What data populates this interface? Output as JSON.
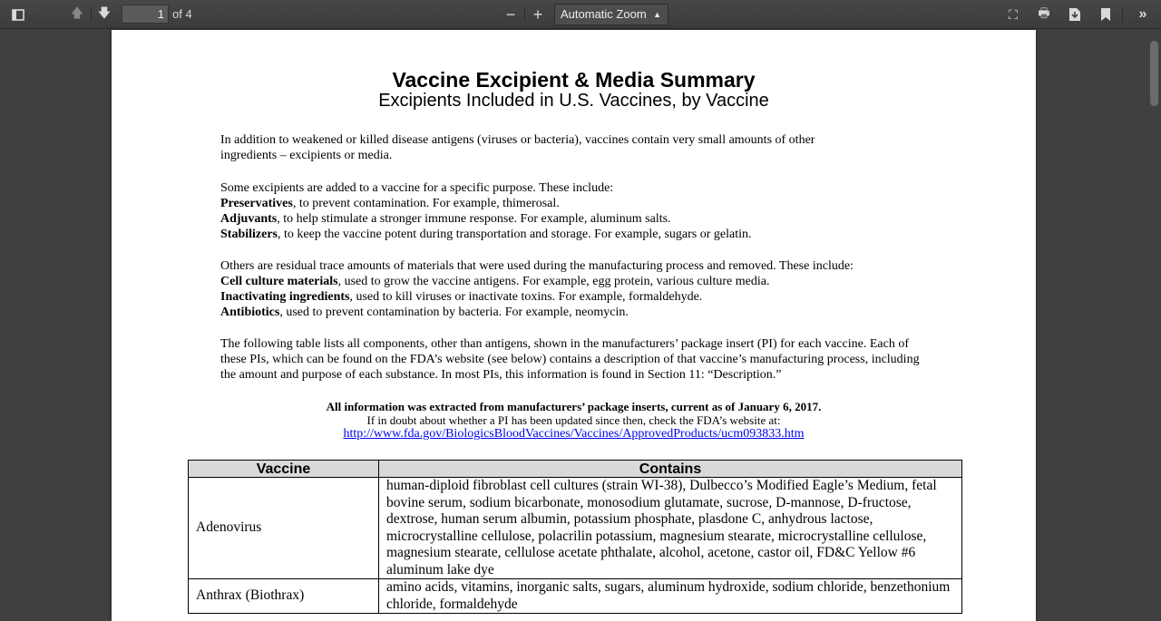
{
  "toolbar": {
    "page_number": "1",
    "page_count": "of 4",
    "zoom": "Automatic Zoom",
    "icons": [
      "sidebar-toggle-icon",
      "previous-page-icon",
      "next-page-icon",
      "zoom-out-icon",
      "zoom-in-icon",
      "presentation-mode-icon",
      "print-icon",
      "download-icon",
      "bookmark-icon",
      "tools-icon"
    ]
  },
  "document": {
    "title": "Vaccine Excipient & Media Summary",
    "subtitle": "Excipients Included in U.S. Vaccines, by Vaccine",
    "intro": "In addition to weakened or killed disease antigens (viruses or bacteria), vaccines contain very small amounts of other ingredients – excipients or media.",
    "purpose_intro": "Some excipients are added to a vaccine for a specific purpose. These include:",
    "purposes": [
      {
        "term": "Preservatives",
        "text": ", to prevent contamination. For example, thimerosal."
      },
      {
        "term": "Adjuvants",
        "text": ", to help stimulate a stronger immune response. For example, aluminum salts."
      },
      {
        "term": "Stabilizers",
        "text": ", to keep the vaccine potent during transportation and storage. For example, sugars or gelatin."
      }
    ],
    "residual_intro": "Others are residual trace amounts of materials that were used during the manufacturing process and removed. These include:",
    "residuals": [
      {
        "term": "Cell culture materials",
        "text": ", used to grow the vaccine antigens. For example, egg protein, various culture media."
      },
      {
        "term": "Inactivating ingredients",
        "text": ", used to kill viruses or inactivate toxins. For example, formaldehyde."
      },
      {
        "term": "Antibiotics",
        "text": ", used to prevent contamination by bacteria. For example, neomycin."
      }
    ],
    "table_intro": "The following table lists all components, other than antigens, shown in the manufacturers’ package insert (PI) for each vaccine. Each of these PIs, which can be found on the FDA’s website (see below) contains a description of that vaccine’s manufacturing process, including the amount and purpose of each substance. In most PIs, this information is found in Section 11: “Description.”",
    "source_note": "All information was extracted from manufacturers’ package inserts, current as of January 6, 2017.",
    "doubt_note": "If in doubt about whether a PI has been updated since then, check the FDA’s website at:",
    "link": "http://www.fda.gov/BiologicsBloodVaccines/Vaccines/ApprovedProducts/ucm093833.htm",
    "table": {
      "headers": [
        "Vaccine",
        "Contains"
      ],
      "rows": [
        {
          "vaccine": "Adenovirus",
          "contains": "human-diploid fibroblast cell cultures (strain WI-38),  Dulbecco’s Modified Eagle’s Medium, fetal bovine serum, sodium bicarbonate, monosodium glutamate, sucrose, D-mannose, D-fructose, dextrose, human serum albumin, potassium phosphate, plasdone C, anhydrous lactose, microcrystalline cellulose, polacrilin potassium, magnesium stearate, microcrystalline cellulose, magnesium stearate, cellulose acetate phthalate, alcohol, acetone, castor oil, FD&C Yellow #6 aluminum lake dye"
        },
        {
          "vaccine": "Anthrax (Biothrax)",
          "contains": "amino acids, vitamins, inorganic salts, sugars, aluminum hydroxide, sodium chloride, benzethonium chloride,  formaldehyde"
        }
      ]
    }
  }
}
